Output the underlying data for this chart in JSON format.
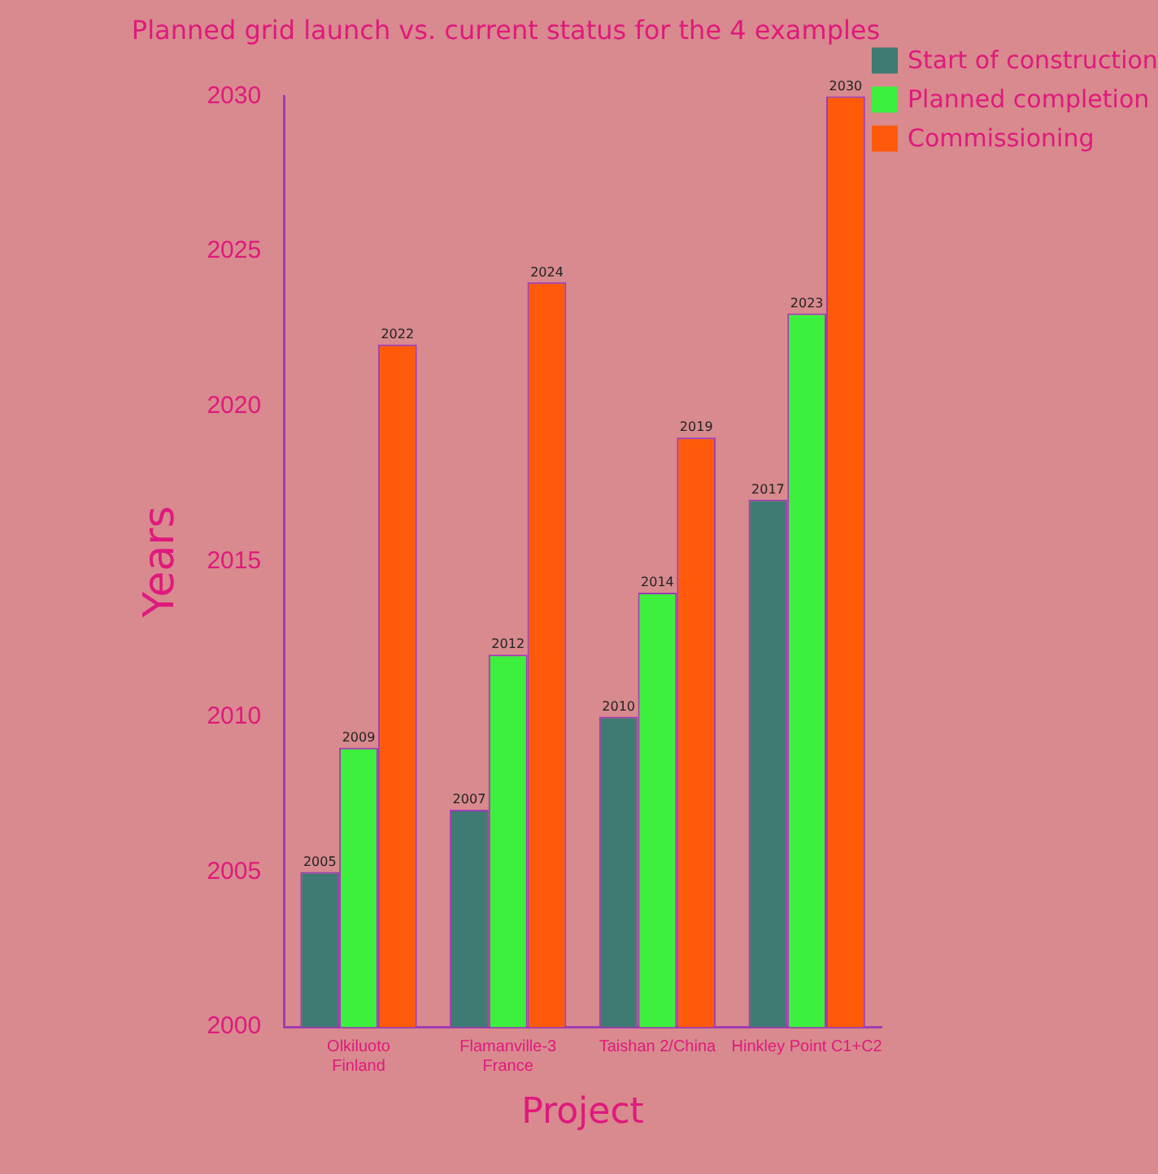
{
  "chart_data": {
    "type": "bar",
    "title": "Planned grid launch vs. current status for the 4 examples",
    "xlabel": "Project",
    "ylabel": "Years",
    "categories": [
      "Olkiluoto\nFinland",
      "Flamanville-3\nFrance",
      "Taishan 2/China",
      "Hinkley Point C1+C2"
    ],
    "series": [
      {
        "name": "Start of construction",
        "color": "#3f7a73",
        "values": [
          2005,
          2007,
          2010,
          2017
        ]
      },
      {
        "name": "Planned completion",
        "color": "#3df03d",
        "values": [
          2009,
          2012,
          2014,
          2023
        ]
      },
      {
        "name": "Commissioning",
        "color": "#ff5a0a",
        "values": [
          2022,
          2024,
          2019,
          2030
        ]
      }
    ],
    "ylim": [
      2000,
      2030
    ],
    "yticks": [
      2000,
      2005,
      2010,
      2015,
      2020,
      2025,
      2030
    ],
    "grid": false,
    "legend": "top right",
    "data_labels": true
  }
}
